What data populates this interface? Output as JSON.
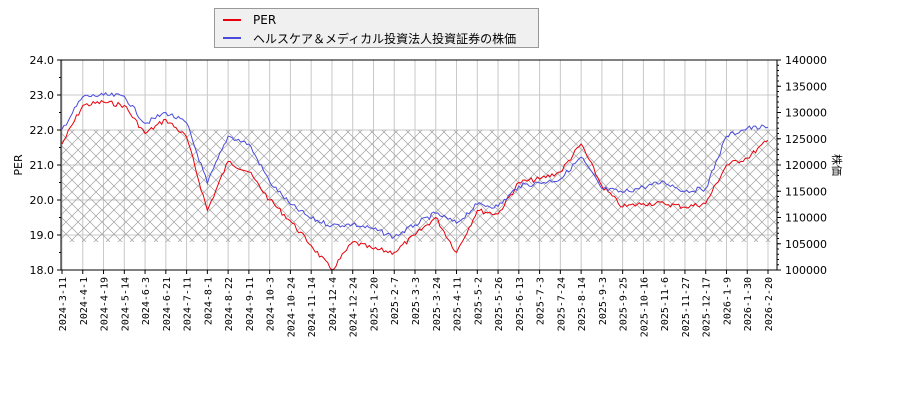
{
  "legend": {
    "items": [
      {
        "label": "PER",
        "color": "#e8000b"
      },
      {
        "label": "ヘルスケア＆メディカル投資法人投資証券の株価",
        "color": "#4b4bde"
      }
    ]
  },
  "axes": {
    "left_label": "PER",
    "right_label": "株価",
    "left_ticks": [
      "24.0",
      "23.0",
      "22.0",
      "21.0",
      "20.0",
      "19.0",
      "18.0"
    ],
    "right_ticks": [
      "140000",
      "135000",
      "130000",
      "125000",
      "120000",
      "115000",
      "110000",
      "105000",
      "100000"
    ],
    "x_ticks": [
      "2024-3-11",
      "2024-4-1",
      "2024-4-19",
      "2024-5-14",
      "2024-6-3",
      "2024-6-21",
      "2024-7-11",
      "2024-8-1",
      "2024-8-22",
      "2024-9-11",
      "2024-10-3",
      "2024-10-24",
      "2024-11-14",
      "2024-12-4",
      "2024-12-24",
      "2025-1-20",
      "2025-2-7",
      "2025-3-3",
      "2025-3-24",
      "2025-4-11",
      "2025-5-2",
      "2025-5-26",
      "2025-6-13",
      "2025-7-3",
      "2025-7-24",
      "2025-8-14",
      "2025-9-3",
      "2025-9-25",
      "2025-10-16",
      "2025-11-6",
      "2025-11-27",
      "2025-12-17",
      "2026-1-9",
      "2026-1-30",
      "2026-2-20"
    ]
  },
  "chart_data": {
    "type": "line",
    "title": "",
    "xlabel": "",
    "ylabel": "PER",
    "y2label": "株価",
    "ylim": [
      18.0,
      24.0
    ],
    "y2lim": [
      100000,
      140000
    ],
    "grid": true,
    "legend_position": "top",
    "shaded_band": {
      "from": 18.8,
      "to": 22.0,
      "pattern": "crosshatch"
    },
    "categories": [
      "2024-3-11",
      "2024-4-1",
      "2024-4-19",
      "2024-5-14",
      "2024-6-3",
      "2024-6-21",
      "2024-7-11",
      "2024-8-1",
      "2024-8-22",
      "2024-9-11",
      "2024-10-3",
      "2024-10-24",
      "2024-11-14",
      "2024-12-4",
      "2024-12-24",
      "2025-1-20",
      "2025-2-7",
      "2025-3-3",
      "2025-3-24",
      "2025-4-11",
      "2025-5-2",
      "2025-5-26",
      "2025-6-13",
      "2025-7-3",
      "2025-7-24",
      "2025-8-14",
      "2025-9-3",
      "2025-9-25",
      "2025-10-16",
      "2025-11-6",
      "2025-11-27",
      "2025-12-17",
      "2026-1-9",
      "2026-1-30",
      "2026-2-20"
    ],
    "series": [
      {
        "name": "PER",
        "axis": "left",
        "color": "#e8000b",
        "values": [
          21.6,
          22.7,
          22.8,
          22.7,
          21.9,
          22.3,
          21.8,
          19.7,
          21.1,
          20.8,
          20.0,
          19.4,
          18.7,
          18.0,
          18.8,
          18.6,
          18.5,
          19.0,
          19.5,
          18.5,
          19.7,
          19.6,
          20.5,
          20.6,
          20.8,
          21.6,
          20.4,
          19.8,
          19.9,
          19.9,
          19.8,
          19.9,
          21.0,
          21.2,
          21.7
        ]
      },
      {
        "name": "ヘルスケア＆メディカル投資法人投資証券の株価",
        "axis": "right",
        "color": "#4b4bde",
        "values": [
          126800,
          133000,
          133300,
          133100,
          127900,
          130000,
          128000,
          116500,
          125500,
          124000,
          116800,
          112500,
          109800,
          108500,
          108700,
          107800,
          106300,
          108600,
          110800,
          108900,
          112500,
          112100,
          116000,
          116600,
          117300,
          121500,
          115500,
          114800,
          115800,
          116800,
          115000,
          115500,
          125500,
          127000,
          127200
        ]
      }
    ]
  }
}
